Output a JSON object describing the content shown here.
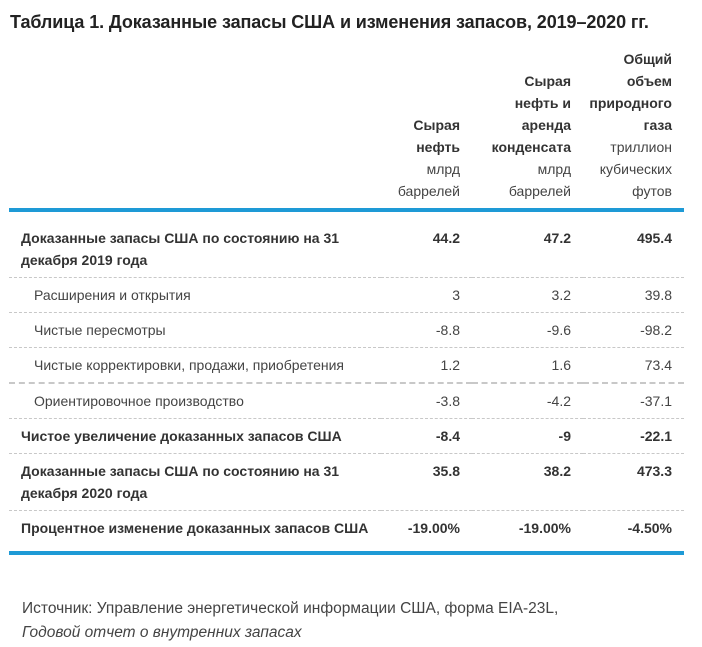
{
  "title": "Таблица 1. Доказанные запасы США и изменения запасов, 2019–2020 гг.",
  "table": {
    "columns": [
      {
        "header_lines": [
          "Сырая",
          "нефть"
        ],
        "unit_lines": [
          "млрд",
          "баррелей"
        ]
      },
      {
        "header_lines": [
          "Сырая",
          "нефть и",
          "аренда",
          "конденсата"
        ],
        "unit_lines": [
          "млрд",
          "баррелей"
        ]
      },
      {
        "header_lines": [
          "Общий",
          "объем",
          "природного",
          "газа"
        ],
        "unit_lines": [
          "триллион",
          "кубических",
          "футов"
        ]
      }
    ],
    "rows": [
      {
        "label": "Доказанные запасы США по состоянию на 31 декабря 2019 года",
        "values": [
          "44.2",
          "47.2",
          "495.4"
        ],
        "bold": true
      },
      {
        "label": "Расширения и открытия",
        "values": [
          "3",
          "3.2",
          "39.8"
        ],
        "bold": false
      },
      {
        "label": "Чистые пересмотры",
        "values": [
          "-8.8",
          "-9.6",
          "-98.2"
        ],
        "bold": false
      },
      {
        "label": "Чистые корректировки, продажи, приобретения",
        "values": [
          "1.2",
          "1.6",
          "73.4"
        ],
        "bold": false
      },
      {
        "label": "Ориентировочное производство",
        "values": [
          "-3.8",
          "-4.2",
          "-37.1"
        ],
        "bold": false
      },
      {
        "label": "Чистое увеличение доказанных запасов США",
        "values": [
          "-8.4",
          "-9",
          "-22.1"
        ],
        "bold": true
      },
      {
        "label": "Доказанные запасы США по состоянию на 31 декабря 2020 года",
        "values": [
          "35.8",
          "38.2",
          "473.3"
        ],
        "bold": true
      },
      {
        "label": "Процентное изменение доказанных запасов США",
        "values": [
          "-19.00%",
          "-19.00%",
          "-4.50%"
        ],
        "bold": true
      }
    ]
  },
  "source": {
    "text": "Источник: Управление энергетической информации США, форма EIA-23L,",
    "italic": "Годовой отчет о внутренних запасах"
  },
  "colors": {
    "accent_rule": "#1e9ad6",
    "text": "#333333",
    "divider": "#c8c8c8"
  }
}
